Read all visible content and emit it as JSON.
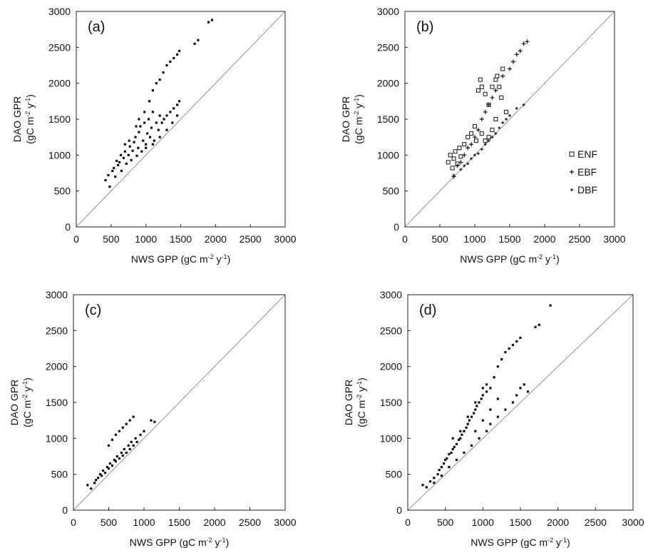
{
  "chart_data": [
    {
      "type": "scatter",
      "panel_label": "(a)",
      "xlabel_main": "NWS GPP",
      "xlabel_unit": "(gC m-2 y-1)",
      "ylabel_main": "DAO GPR",
      "ylabel_unit": "(gC m-2 y-1)",
      "xlim": [
        0,
        3000
      ],
      "ylim": [
        0,
        3000
      ],
      "xticks": [
        "0",
        "500",
        "1000",
        "1500",
        "2000",
        "2500",
        "3000"
      ],
      "yticks": [
        "0",
        "500",
        "1000",
        "1500",
        "2000",
        "2500",
        "3000"
      ],
      "one_to_one_line": true,
      "series": [
        {
          "marker": "square",
          "points": [
            [
              420,
              650
            ],
            [
              460,
              720
            ],
            [
              480,
              560
            ],
            [
              520,
              780
            ],
            [
              540,
              820
            ],
            [
              560,
              700
            ],
            [
              600,
              860
            ],
            [
              620,
              900
            ],
            [
              650,
              780
            ],
            [
              680,
              960
            ],
            [
              700,
              1050
            ],
            [
              720,
              880
            ],
            [
              750,
              1000
            ],
            [
              770,
              1120
            ],
            [
              790,
              930
            ],
            [
              810,
              1060
            ],
            [
              830,
              1180
            ],
            [
              850,
              1250
            ],
            [
              870,
              990
            ],
            [
              890,
              1100
            ],
            [
              900,
              1320
            ],
            [
              920,
              1400
            ],
            [
              940,
              1050
            ],
            [
              960,
              1200
            ],
            [
              980,
              1450
            ],
            [
              1000,
              1150
            ],
            [
              1020,
              1300
            ],
            [
              1040,
              1500
            ],
            [
              1060,
              1250
            ],
            [
              1080,
              1380
            ],
            [
              1100,
              1600
            ],
            [
              1120,
              1200
            ],
            [
              1150,
              1450
            ],
            [
              1180,
              1350
            ],
            [
              1200,
              1550
            ],
            [
              1230,
              1450
            ],
            [
              1260,
              1500
            ],
            [
              1300,
              1550
            ],
            [
              1350,
              1600
            ],
            [
              1400,
              1650
            ],
            [
              1450,
              1700
            ],
            [
              1480,
              1750
            ],
            [
              1100,
              1900
            ],
            [
              1150,
              2000
            ],
            [
              1200,
              2050
            ],
            [
              1250,
              2150
            ],
            [
              1300,
              2250
            ],
            [
              1350,
              2300
            ],
            [
              1400,
              2350
            ],
            [
              1450,
              2400
            ],
            [
              1480,
              2450
            ],
            [
              1700,
              2550
            ],
            [
              1750,
              2600
            ],
            [
              1900,
              2850
            ],
            [
              1950,
              2880
            ],
            [
              1050,
              1750
            ],
            [
              980,
              1600
            ],
            [
              900,
              1500
            ],
            [
              860,
              1400
            ],
            [
              760,
              1200
            ],
            [
              700,
              1150
            ],
            [
              640,
              1000
            ],
            [
              580,
              920
            ],
            [
              1000,
              1100
            ],
            [
              1100,
              1150
            ],
            [
              1200,
              1250
            ],
            [
              1300,
              1350
            ],
            [
              1380,
              1450
            ],
            [
              1450,
              1550
            ]
          ]
        }
      ]
    },
    {
      "type": "scatter",
      "panel_label": "(b)",
      "xlabel_main": "NWS GPP",
      "xlabel_unit": "(gC m-2 y-1)",
      "ylabel_main": "DAO GPR",
      "ylabel_unit": "(gC m-2 y-1)",
      "xlim": [
        0,
        3000
      ],
      "ylim": [
        0,
        3000
      ],
      "xticks": [
        "0",
        "500",
        "1000",
        "1500",
        "2000",
        "2500",
        "3000"
      ],
      "yticks": [
        "0",
        "500",
        "1000",
        "1500",
        "2000",
        "2500",
        "3000"
      ],
      "one_to_one_line": true,
      "legend": {
        "position": "right",
        "entries": [
          "ENF",
          "EBF",
          "DBF"
        ]
      },
      "series": [
        {
          "name": "ENF",
          "marker": "open-square",
          "points": [
            [
              620,
              900
            ],
            [
              650,
              1000
            ],
            [
              680,
              820
            ],
            [
              700,
              950
            ],
            [
              720,
              1050
            ],
            [
              750,
              880
            ],
            [
              780,
              1100
            ],
            [
              800,
              980
            ],
            [
              850,
              1150
            ],
            [
              900,
              1250
            ],
            [
              950,
              1300
            ],
            [
              1000,
              1400
            ],
            [
              1020,
              1200
            ],
            [
              1050,
              1900
            ],
            [
              1080,
              2050
            ],
            [
              1100,
              1950
            ],
            [
              1150,
              1850
            ],
            [
              1200,
              1700
            ],
            [
              1250,
              1950
            ],
            [
              1300,
              2050
            ],
            [
              1320,
              2100
            ],
            [
              1350,
              1950
            ],
            [
              1380,
              1800
            ],
            [
              1400,
              2200
            ],
            [
              1450,
              1600
            ],
            [
              1100,
              1300
            ],
            [
              1150,
              1200
            ],
            [
              1200,
              1250
            ],
            [
              1250,
              1350
            ],
            [
              1300,
              1500
            ]
          ]
        },
        {
          "name": "EBF",
          "marker": "plus",
          "points": [
            [
              700,
              700
            ],
            [
              750,
              850
            ],
            [
              800,
              900
            ],
            [
              850,
              1000
            ],
            [
              900,
              1100
            ],
            [
              950,
              1150
            ],
            [
              1000,
              1250
            ],
            [
              1050,
              1350
            ],
            [
              1100,
              1500
            ],
            [
              1150,
              1600
            ],
            [
              1200,
              1700
            ],
            [
              1250,
              1800
            ],
            [
              1300,
              1900
            ],
            [
              1400,
              2100
            ],
            [
              1500,
              2200
            ],
            [
              1550,
              2300
            ],
            [
              1600,
              2400
            ],
            [
              1650,
              2450
            ],
            [
              1700,
              2550
            ],
            [
              1750,
              2580
            ]
          ]
        },
        {
          "name": "DBF",
          "marker": "small-plus",
          "points": [
            [
              700,
              720
            ],
            [
              800,
              800
            ],
            [
              850,
              850
            ],
            [
              900,
              880
            ],
            [
              950,
              950
            ],
            [
              1000,
              1000
            ],
            [
              1050,
              1020
            ],
            [
              1100,
              1080
            ],
            [
              1150,
              1150
            ],
            [
              1200,
              1200
            ],
            [
              1250,
              1250
            ],
            [
              1300,
              1300
            ],
            [
              1350,
              1380
            ],
            [
              1400,
              1450
            ],
            [
              1450,
              1500
            ],
            [
              1500,
              1550
            ],
            [
              1600,
              1650
            ],
            [
              1700,
              1700
            ]
          ]
        }
      ]
    },
    {
      "type": "scatter",
      "panel_label": "(c)",
      "xlabel_main": "NWS GPP",
      "xlabel_unit": "(gC m-2 y-1)",
      "ylabel_main": "DAO GPR",
      "ylabel_unit": "(gC m-2 y-1)",
      "xlim": [
        0,
        3000
      ],
      "ylim": [
        0,
        3000
      ],
      "xticks": [
        "0",
        "500",
        "1000",
        "1500",
        "2000",
        "2500",
        "3000"
      ],
      "yticks": [
        "0",
        "500",
        "1000",
        "1500",
        "2000",
        "2500",
        "3000"
      ],
      "one_to_one_line": true,
      "series": [
        {
          "marker": "square",
          "points": [
            [
              200,
              350
            ],
            [
              250,
              300
            ],
            [
              300,
              380
            ],
            [
              320,
              420
            ],
            [
              350,
              450
            ],
            [
              380,
              500
            ],
            [
              400,
              480
            ],
            [
              420,
              550
            ],
            [
              450,
              520
            ],
            [
              480,
              600
            ],
            [
              500,
              580
            ],
            [
              520,
              650
            ],
            [
              550,
              620
            ],
            [
              580,
              700
            ],
            [
              600,
              680
            ],
            [
              620,
              750
            ],
            [
              650,
              720
            ],
            [
              680,
              800
            ],
            [
              700,
              760
            ],
            [
              720,
              850
            ],
            [
              750,
              800
            ],
            [
              780,
              900
            ],
            [
              800,
              850
            ],
            [
              820,
              950
            ],
            [
              850,
              900
            ],
            [
              880,
              1000
            ],
            [
              900,
              950
            ],
            [
              500,
              900
            ],
            [
              550,
              980
            ],
            [
              600,
              1050
            ],
            [
              650,
              1100
            ],
            [
              700,
              1150
            ],
            [
              750,
              1200
            ],
            [
              800,
              1250
            ],
            [
              850,
              1300
            ],
            [
              1100,
              1250
            ],
            [
              1150,
              1230
            ],
            [
              1000,
              1100
            ],
            [
              950,
              1050
            ]
          ]
        }
      ]
    },
    {
      "type": "scatter",
      "panel_label": "(d)",
      "xlabel_main": "NWS GPP",
      "xlabel_unit": "(gC m-2 y-1)",
      "ylabel_main": "DAO GPR",
      "ylabel_unit": "(gC m-2 y-1)",
      "xlim": [
        0,
        3000
      ],
      "ylim": [
        0,
        3000
      ],
      "xticks": [
        "0",
        "500",
        "1000",
        "1500",
        "2000",
        "2500",
        "3000"
      ],
      "yticks": [
        "0",
        "500",
        "1000",
        "1500",
        "2000",
        "2500",
        "3000"
      ],
      "one_to_one_line": true,
      "series": [
        {
          "marker": "square",
          "points": [
            [
              200,
              350
            ],
            [
              250,
              320
            ],
            [
              300,
              400
            ],
            [
              350,
              450
            ],
            [
              400,
              500
            ],
            [
              420,
              560
            ],
            [
              450,
              600
            ],
            [
              480,
              650
            ],
            [
              500,
              700
            ],
            [
              520,
              720
            ],
            [
              550,
              780
            ],
            [
              580,
              800
            ],
            [
              600,
              850
            ],
            [
              620,
              880
            ],
            [
              650,
              920
            ],
            [
              680,
              980
            ],
            [
              700,
              1000
            ],
            [
              720,
              1050
            ],
            [
              750,
              1100
            ],
            [
              780,
              1150
            ],
            [
              800,
              1200
            ],
            [
              820,
              1250
            ],
            [
              850,
              1300
            ],
            [
              880,
              1350
            ],
            [
              900,
              1400
            ],
            [
              920,
              1450
            ],
            [
              950,
              1500
            ],
            [
              980,
              1550
            ],
            [
              1000,
              1600
            ],
            [
              1050,
              1650
            ],
            [
              1100,
              1700
            ],
            [
              1150,
              1850
            ],
            [
              1200,
              2000
            ],
            [
              1250,
              2100
            ],
            [
              1300,
              2200
            ],
            [
              1350,
              2250
            ],
            [
              1400,
              2300
            ],
            [
              1450,
              2350
            ],
            [
              1500,
              2400
            ],
            [
              1700,
              2550
            ],
            [
              1750,
              2580
            ],
            [
              1900,
              2850
            ],
            [
              1100,
              1200
            ],
            [
              1200,
              1300
            ],
            [
              1300,
              1400
            ],
            [
              1400,
              1500
            ],
            [
              1450,
              1600
            ],
            [
              1500,
              1700
            ],
            [
              1550,
              1750
            ],
            [
              1600,
              1650
            ],
            [
              350,
              380
            ],
            [
              450,
              480
            ],
            [
              550,
              600
            ],
            [
              650,
              700
            ],
            [
              750,
              800
            ],
            [
              850,
              900
            ],
            [
              950,
              1000
            ],
            [
              1050,
              1100
            ],
            [
              600,
              1000
            ],
            [
              700,
              1100
            ],
            [
              800,
              1300
            ],
            [
              900,
              1500
            ],
            [
              1000,
              1700
            ],
            [
              1050,
              1750
            ],
            [
              900,
              1100
            ],
            [
              1000,
              1250
            ],
            [
              1100,
              1400
            ],
            [
              1200,
              1550
            ]
          ]
        }
      ]
    }
  ]
}
